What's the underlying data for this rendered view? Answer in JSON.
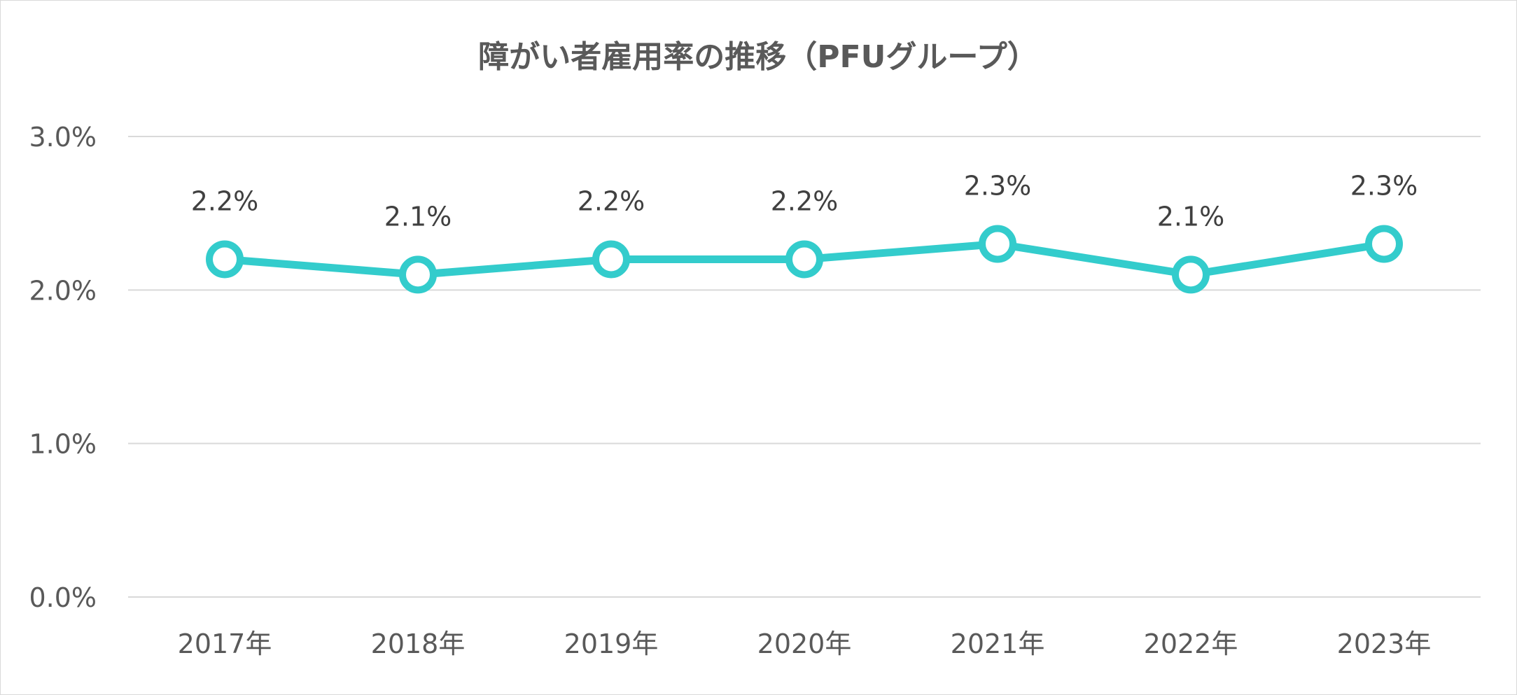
{
  "chart_data": {
    "type": "line",
    "title": "障がい者雇用率の推移（PFUグループ）",
    "categories": [
      "2017年",
      "2018年",
      "2019年",
      "2020年",
      "2021年",
      "2022年",
      "2023年"
    ],
    "series": [
      {
        "values": [
          2.2,
          2.1,
          2.2,
          2.2,
          2.3,
          2.1,
          2.3
        ],
        "data_labels": [
          "2.2%",
          "2.1%",
          "2.2%",
          "2.2%",
          "2.3%",
          "2.1%",
          "2.3%"
        ],
        "color": "#33CCCC"
      }
    ],
    "ylim": [
      0,
      3
    ],
    "yticks": [
      0,
      1,
      2,
      3
    ],
    "ytick_labels": [
      "0.0%",
      "1.0%",
      "2.0%",
      "3.0%"
    ],
    "grid": true,
    "legend": "none",
    "colors": {
      "line": "#33CCCC",
      "marker_fill": "#ffffff",
      "grid": "#d9d9d9",
      "text": "#595959"
    }
  }
}
